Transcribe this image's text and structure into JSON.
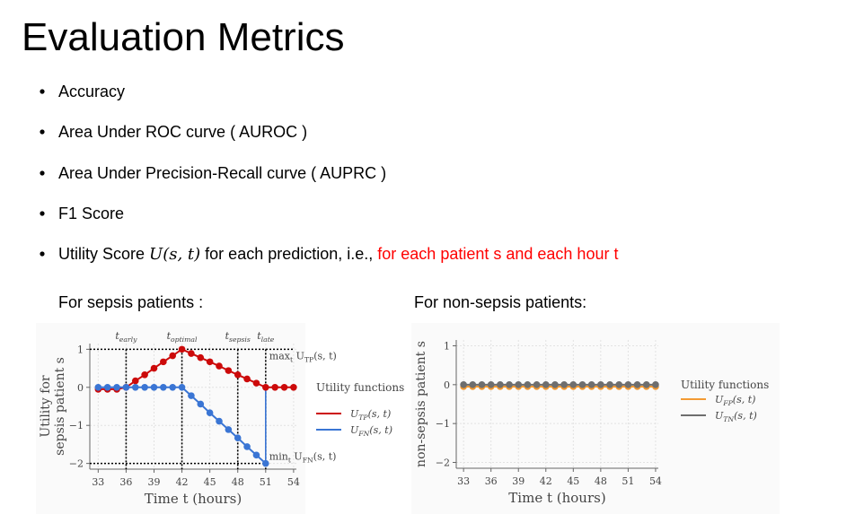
{
  "title": "Evaluation Metrics",
  "bullets": [
    [
      "Accuracy"
    ],
    [
      "Area Under ROC curve ( AUROC )"
    ],
    [
      "Area Under Precision-Recall curve ( AUPRC )"
    ],
    [
      "F1 Score"
    ],
    [
      "Utility Score ",
      "U(s, t)",
      " for each prediction, i.e., ",
      "for each patient s and each hour t"
    ]
  ],
  "chart_data": [
    {
      "type": "line",
      "title": "For sepsis patients :",
      "ylabel": [
        "Utility for",
        "sepsis patient s"
      ],
      "xlabel": "Time t (hours)",
      "x": [
        33,
        34,
        35,
        36,
        37,
        38,
        39,
        40,
        41,
        42,
        43,
        44,
        45,
        46,
        47,
        48,
        49,
        50,
        51,
        52,
        53,
        54
      ],
      "xlim": [
        32.1,
        54.3
      ],
      "xticks": [
        33,
        36,
        39,
        42,
        45,
        48,
        51,
        54
      ],
      "ylim": [
        -2.15,
        1.15
      ],
      "yticks": [
        {
          "value": -2,
          "label": "−2"
        },
        {
          "value": -1,
          "label": "−1"
        },
        0,
        1
      ],
      "grid": true,
      "legend_title": "Utility functions",
      "series": [
        {
          "name": [
            "U",
            "TP",
            "(s, t)"
          ],
          "color": "#cc0a0a",
          "values": [
            -0.05,
            -0.05,
            -0.05,
            0,
            0.17,
            0.33,
            0.5,
            0.67,
            0.83,
            1,
            0.89,
            0.78,
            0.67,
            0.56,
            0.44,
            0.33,
            0.22,
            0.11,
            0,
            0,
            0,
            0
          ]
        },
        {
          "name": [
            "U",
            "FN",
            "(s, t)"
          ],
          "color": "#3a75d4",
          "values": [
            0,
            0,
            0,
            0,
            0,
            0,
            0,
            0,
            0,
            0,
            -0.22,
            -0.44,
            -0.67,
            -0.89,
            -1.11,
            -1.33,
            -1.56,
            -1.78,
            -2,
            null,
            null,
            null
          ]
        }
      ],
      "annotations": [
        {
          "x": 36,
          "label": [
            "t",
            "early"
          ]
        },
        {
          "x": 42,
          "label": [
            "t",
            "optimal"
          ]
        },
        {
          "x": 48,
          "label": [
            "t",
            "sepsis"
          ]
        },
        {
          "x": 51,
          "label": [
            "t",
            "late"
          ]
        }
      ],
      "max_label": [
        "max",
        "t",
        " U",
        "TP",
        "(s, t)"
      ],
      "min_label": [
        "min",
        "t",
        " U",
        "FN",
        "(s, t)"
      ]
    },
    {
      "type": "line",
      "title": "For non-sepsis patients:",
      "ylabel": [
        "non-sepsis patient s"
      ],
      "xlabel": "Time t (hours)",
      "x": [
        33,
        34,
        35,
        36,
        37,
        38,
        39,
        40,
        41,
        42,
        43,
        44,
        45,
        46,
        47,
        48,
        49,
        50,
        51,
        52,
        53,
        54
      ],
      "xlim": [
        32.2,
        54.3
      ],
      "xticks": [
        33,
        36,
        39,
        42,
        45,
        48,
        51,
        54
      ],
      "ylim": [
        -2.15,
        1.15
      ],
      "yticks": [
        {
          "value": -2,
          "label": "−2"
        },
        {
          "value": -1,
          "label": "−1"
        },
        0,
        1
      ],
      "grid": true,
      "legend_title": "Utility functions",
      "series": [
        {
          "name": [
            "U",
            "FP",
            "(s, t)"
          ],
          "color": "#f39a33",
          "values": [
            -0.05,
            -0.05,
            -0.05,
            -0.05,
            -0.05,
            -0.05,
            -0.05,
            -0.05,
            -0.05,
            -0.05,
            -0.05,
            -0.05,
            -0.05,
            -0.05,
            -0.05,
            -0.05,
            -0.05,
            -0.05,
            -0.05,
            -0.05,
            -0.05,
            -0.05
          ]
        },
        {
          "name": [
            "U",
            "TN",
            "(s, t)"
          ],
          "color": "#6e6e6e",
          "values": [
            0,
            0,
            0,
            0,
            0,
            0,
            0,
            0,
            0,
            0,
            0,
            0,
            0,
            0,
            0,
            0,
            0,
            0,
            0,
            0,
            0,
            0
          ]
        }
      ]
    }
  ]
}
